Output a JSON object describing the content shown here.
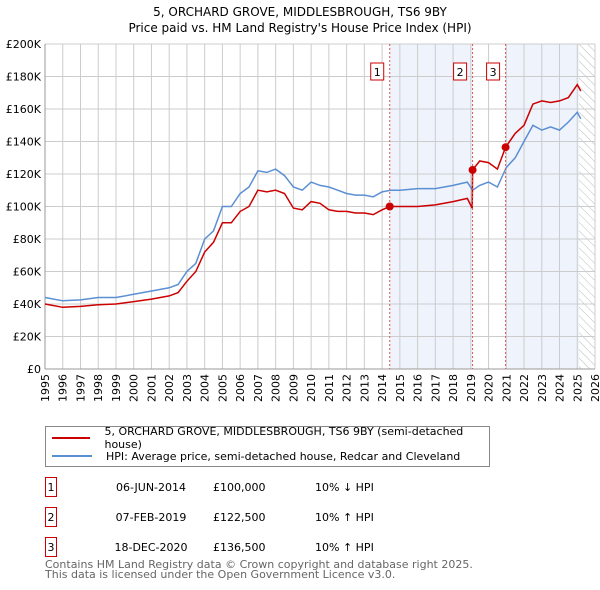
{
  "chart_data": {
    "type": "line",
    "title": "5, ORCHARD GROVE, MIDDLESBROUGH, TS6 9BY",
    "subtitle": "Price paid vs. HM Land Registry's House Price Index (HPI)",
    "xlim": [
      1995,
      2026
    ],
    "ylim": [
      0,
      200000
    ],
    "y_ticks": [
      0,
      20000,
      40000,
      60000,
      80000,
      100000,
      120000,
      140000,
      160000,
      180000,
      200000
    ],
    "y_tick_labels": [
      "£0",
      "£20K",
      "£40K",
      "£60K",
      "£80K",
      "£100K",
      "£120K",
      "£140K",
      "£160K",
      "£180K",
      "£200K"
    ],
    "x_tick_labels": [
      "1995",
      "1996",
      "1997",
      "1998",
      "1999",
      "2000",
      "2001",
      "2002",
      "2003",
      "2004",
      "2005",
      "2006",
      "2007",
      "2008",
      "2009",
      "2010",
      "2011",
      "2012",
      "2013",
      "2014",
      "2015",
      "2016",
      "2017",
      "2018",
      "2019",
      "2020",
      "2021",
      "2022",
      "2023",
      "2024",
      "2025",
      "2026"
    ],
    "grid": true,
    "series": [
      {
        "name": "5, ORCHARD GROVE, MIDDLESBROUGH, TS6 9BY (semi-detached house)",
        "color": "#cc0000",
        "x": [
          1995,
          1996,
          1997,
          1998,
          1999,
          2000,
          2001,
          2002,
          2002.5,
          2003,
          2003.5,
          2004,
          2004.5,
          2005,
          2005.5,
          2006,
          2006.5,
          2007,
          2007.5,
          2008,
          2008.5,
          2009,
          2009.5,
          2010,
          2010.5,
          2011,
          2011.5,
          2012,
          2012.5,
          2013,
          2013.5,
          2014,
          2014.43,
          2015,
          2016,
          2017,
          2018,
          2018.8,
          2019.08,
          2019.1,
          2019.5,
          2020,
          2020.5,
          2020.96,
          2021.5,
          2022,
          2022.5,
          2023,
          2023.5,
          2024,
          2024.5,
          2025,
          2025.2
        ],
        "y": [
          40000,
          38000,
          38500,
          39500,
          40000,
          41500,
          43000,
          45000,
          47000,
          54000,
          60000,
          72000,
          78000,
          90000,
          90000,
          97000,
          100000,
          110000,
          109000,
          110000,
          108000,
          99000,
          98000,
          103000,
          102000,
          98000,
          97000,
          97000,
          96000,
          96000,
          95000,
          98000,
          100000,
          100000,
          100000,
          101000,
          103000,
          105000,
          99000,
          122500,
          128000,
          127000,
          123000,
          136500,
          145000,
          150000,
          163000,
          165000,
          164000,
          165000,
          167000,
          175000,
          171000
        ]
      },
      {
        "name": "HPI: Average price, semi-detached house, Redcar and Cleveland",
        "color": "#5b8fd4",
        "x": [
          1995,
          1996,
          1997,
          1998,
          1999,
          2000,
          2001,
          2002,
          2002.5,
          2003,
          2003.5,
          2004,
          2004.5,
          2005,
          2005.5,
          2006,
          2006.5,
          2007,
          2007.5,
          2008,
          2008.5,
          2009,
          2009.5,
          2010,
          2010.5,
          2011,
          2011.5,
          2012,
          2012.5,
          2013,
          2013.5,
          2014,
          2014.5,
          2015,
          2016,
          2017,
          2018,
          2018.8,
          2019.1,
          2019.5,
          2020,
          2020.5,
          2021,
          2021.5,
          2022,
          2022.5,
          2023,
          2023.5,
          2024,
          2024.5,
          2025,
          2025.2
        ],
        "y": [
          44000,
          42000,
          42500,
          44000,
          44000,
          46000,
          48000,
          50000,
          52000,
          60000,
          65000,
          80000,
          85000,
          100000,
          100000,
          108000,
          112000,
          122000,
          121000,
          123000,
          119000,
          112000,
          110000,
          115000,
          113000,
          112000,
          110000,
          108000,
          107000,
          107000,
          106000,
          109000,
          110000,
          110000,
          111000,
          111000,
          113000,
          115000,
          110000,
          113000,
          115000,
          112000,
          124000,
          130000,
          140000,
          150000,
          147000,
          149000,
          147000,
          152000,
          158000,
          154000
        ]
      }
    ],
    "sales": [
      {
        "id": "1",
        "x": 2014.43,
        "y": 100000,
        "date": "06-JUN-2014",
        "price": "£100,000",
        "hpi": "10% ↓ HPI"
      },
      {
        "id": "2",
        "x": 2019.1,
        "y": 122500,
        "date": "07-FEB-2019",
        "price": "£122,500",
        "hpi": "10% ↑ HPI"
      },
      {
        "id": "3",
        "x": 2020.96,
        "y": 136500,
        "date": "18-DEC-2020",
        "price": "£136,500",
        "hpi": "10% ↑ HPI"
      }
    ],
    "shaded_ranges": [
      [
        2014.43,
        2019.1
      ],
      [
        2020.96,
        2025.1
      ]
    ],
    "forecast_hatch_from": 2025.1,
    "legend_placement": "bottom"
  },
  "footer": {
    "line1": "Contains HM Land Registry data © Crown copyright and database right 2025.",
    "line2": "This data is licensed under the Open Government Licence v3.0."
  }
}
